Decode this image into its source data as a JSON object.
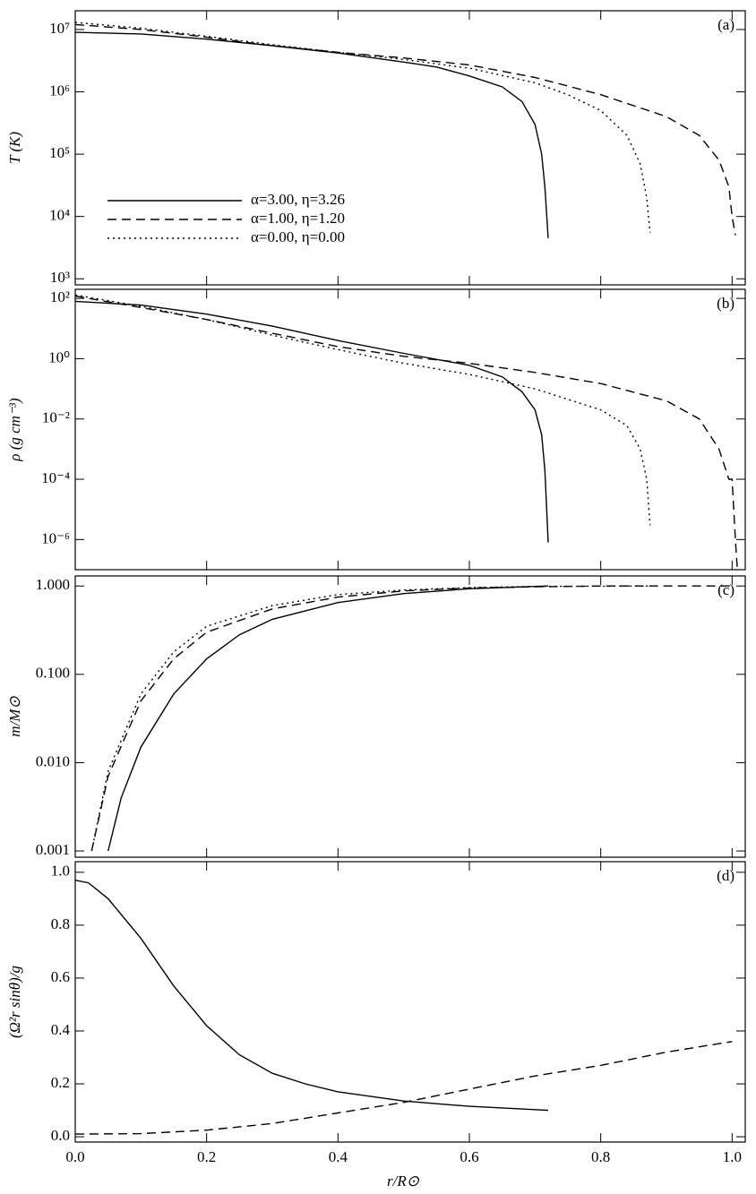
{
  "chart_data": [
    {
      "type": "line",
      "panel_label": "(a)",
      "ylabel": "T (K)",
      "log_y": true,
      "legend": "lower left",
      "xlim": [
        0,
        1.02
      ],
      "xticks": [
        {
          "value": 0,
          "label": "0.0"
        },
        0.2,
        0.4,
        0.6,
        0.8,
        {
          "value": 1,
          "label": "1.0"
        }
      ],
      "ylim": [
        800,
        20000000
      ],
      "yticks": [
        {
          "value": 1000,
          "label": "10³"
        },
        {
          "value": 10000,
          "label": "10⁴"
        },
        {
          "value": 100000,
          "label": "10⁵"
        },
        {
          "value": 1000000,
          "label": "10⁶"
        },
        {
          "value": 10000000,
          "label": "10⁷"
        }
      ],
      "series": [
        {
          "name": "α=3.00, η=3.26",
          "color": "#000000",
          "dash": "solid",
          "x": [
            0,
            0.1,
            0.2,
            0.3,
            0.4,
            0.5,
            0.55,
            0.6,
            0.65,
            0.68,
            0.7,
            0.71,
            0.715,
            0.72
          ],
          "values": [
            9000000,
            8500000,
            7000000,
            5500000,
            4200000,
            3000000,
            2500000,
            1800000,
            1200000,
            700000,
            300000,
            100000,
            30000,
            4500
          ]
        },
        {
          "name": "α=1.00, η=1.20",
          "color": "#000000",
          "dash": "dashed",
          "x": [
            0,
            0.1,
            0.2,
            0.3,
            0.4,
            0.5,
            0.6,
            0.7,
            0.8,
            0.9,
            0.95,
            0.98,
            0.995,
            1.0,
            1.005
          ],
          "values": [
            12000000,
            10000000,
            7500000,
            5500000,
            4300000,
            3500000,
            2700000,
            1700000,
            900000,
            400000,
            200000,
            80000,
            30000,
            10000,
            5000
          ]
        },
        {
          "name": "α=0.00, η=0.00",
          "color": "#000000",
          "dash": "dotted",
          "x": [
            0,
            0.1,
            0.2,
            0.3,
            0.4,
            0.5,
            0.6,
            0.7,
            0.75,
            0.8,
            0.84,
            0.86,
            0.87,
            0.875
          ],
          "values": [
            13000000,
            10500000,
            7800000,
            5700000,
            4300000,
            3300000,
            2400000,
            1400000,
            900000,
            500000,
            200000,
            70000,
            20000,
            5500
          ]
        }
      ]
    },
    {
      "type": "line",
      "panel_label": "(b)",
      "ylabel": "ρ (g cm⁻³)",
      "log_y": true,
      "xlim": [
        0,
        1.02
      ],
      "xticks": [
        {
          "value": 0,
          "label": "0.0"
        },
        0.2,
        0.4,
        0.6,
        0.8,
        {
          "value": 1,
          "label": "1.0"
        }
      ],
      "ylim": [
        1e-07,
        200
      ],
      "yticks": [
        {
          "value": 1e-06,
          "label": "10⁻⁶"
        },
        {
          "value": 0.0001,
          "label": "10⁻⁴"
        },
        {
          "value": 0.01,
          "label": "10⁻²"
        },
        {
          "value": 1,
          "label": "10⁰"
        },
        {
          "value": 100,
          "label": "10²"
        }
      ],
      "series": [
        {
          "color": "#000000",
          "dash": "solid",
          "x": [
            0,
            0.1,
            0.2,
            0.3,
            0.4,
            0.5,
            0.6,
            0.65,
            0.68,
            0.7,
            0.71,
            0.715,
            0.72
          ],
          "values": [
            80,
            60,
            30,
            12,
            4,
            1.5,
            0.6,
            0.25,
            0.08,
            0.02,
            0.003,
            0.0002,
            8e-07
          ]
        },
        {
          "color": "#000000",
          "dash": "dashed",
          "x": [
            0,
            0.1,
            0.2,
            0.3,
            0.4,
            0.5,
            0.6,
            0.7,
            0.8,
            0.9,
            0.95,
            0.98,
            0.995,
            1.0,
            1.005,
            1.008
          ],
          "values": [
            120,
            50,
            20,
            7,
            2.5,
            1.2,
            0.7,
            0.35,
            0.15,
            0.04,
            0.01,
            0.001,
            0.0001,
            0.0001,
            1e-06,
            1e-07
          ]
        },
        {
          "color": "#000000",
          "dash": "dotted",
          "x": [
            0,
            0.1,
            0.2,
            0.3,
            0.4,
            0.5,
            0.6,
            0.7,
            0.8,
            0.84,
            0.86,
            0.87,
            0.875
          ],
          "values": [
            130,
            55,
            20,
            6,
            2,
            0.7,
            0.3,
            0.1,
            0.02,
            0.006,
            0.001,
            0.0001,
            3e-06
          ]
        }
      ]
    },
    {
      "type": "line",
      "panel_label": "(c)",
      "ylabel": "m/M⊙",
      "log_y": true,
      "xlim": [
        0,
        1.02
      ],
      "xticks": [
        {
          "value": 0,
          "label": "0.0"
        },
        0.2,
        0.4,
        0.6,
        0.8,
        {
          "value": 1,
          "label": "1.0"
        }
      ],
      "ylim": [
        0.00085,
        1.3
      ],
      "yticks": [
        {
          "value": 0.001,
          "label": "0.001"
        },
        {
          "value": 0.01,
          "label": "0.010"
        },
        {
          "value": 0.1,
          "label": "0.100"
        },
        {
          "value": 1,
          "label": "1.000"
        }
      ],
      "series": [
        {
          "color": "#000000",
          "dash": "solid",
          "x": [
            0.05,
            0.07,
            0.1,
            0.15,
            0.2,
            0.25,
            0.3,
            0.4,
            0.5,
            0.6,
            0.72
          ],
          "values": [
            0.001,
            0.004,
            0.015,
            0.06,
            0.15,
            0.28,
            0.42,
            0.65,
            0.82,
            0.93,
            1.0
          ]
        },
        {
          "color": "#000000",
          "dash": "dashed",
          "x": [
            0.025,
            0.05,
            0.1,
            0.15,
            0.2,
            0.3,
            0.4,
            0.5,
            0.6,
            0.7,
            0.8,
            1.0
          ],
          "values": [
            0.001,
            0.007,
            0.05,
            0.15,
            0.3,
            0.55,
            0.75,
            0.88,
            0.95,
            0.98,
            1.0,
            1.0
          ]
        },
        {
          "color": "#000000",
          "dash": "dotted",
          "x": [
            0.025,
            0.05,
            0.1,
            0.15,
            0.2,
            0.3,
            0.4,
            0.5,
            0.6,
            0.7,
            0.875
          ],
          "values": [
            0.001,
            0.008,
            0.06,
            0.18,
            0.35,
            0.6,
            0.8,
            0.9,
            0.96,
            0.99,
            1.0
          ]
        }
      ]
    },
    {
      "type": "line",
      "panel_label": "(d)",
      "ylabel": "(Ω²r sinθ)/g",
      "xlabel": "r/R⊙",
      "xlim": [
        0,
        1.02
      ],
      "xticks": [
        {
          "value": 0,
          "label": "0.0"
        },
        0.2,
        0.4,
        0.6,
        0.8,
        {
          "value": 1,
          "label": "1.0"
        }
      ],
      "ylim": [
        -0.02,
        1.04
      ],
      "yticks": [
        {
          "value": 0,
          "label": "0.0"
        },
        0.2,
        0.4,
        0.6,
        0.8,
        {
          "value": 1,
          "label": "1.0"
        }
      ],
      "series": [
        {
          "color": "#000000",
          "dash": "solid",
          "x": [
            0,
            0.02,
            0.05,
            0.1,
            0.15,
            0.2,
            0.25,
            0.3,
            0.35,
            0.4,
            0.5,
            0.6,
            0.72
          ],
          "values": [
            0.97,
            0.96,
            0.9,
            0.75,
            0.57,
            0.42,
            0.31,
            0.24,
            0.2,
            0.17,
            0.135,
            0.115,
            0.1
          ]
        },
        {
          "color": "#000000",
          "dash": "dashed",
          "x": [
            0,
            0.1,
            0.2,
            0.3,
            0.4,
            0.5,
            0.6,
            0.7,
            0.8,
            0.9,
            1.0
          ],
          "values": [
            0.01,
            0.012,
            0.025,
            0.05,
            0.09,
            0.13,
            0.18,
            0.23,
            0.27,
            0.32,
            0.36
          ]
        }
      ]
    }
  ]
}
